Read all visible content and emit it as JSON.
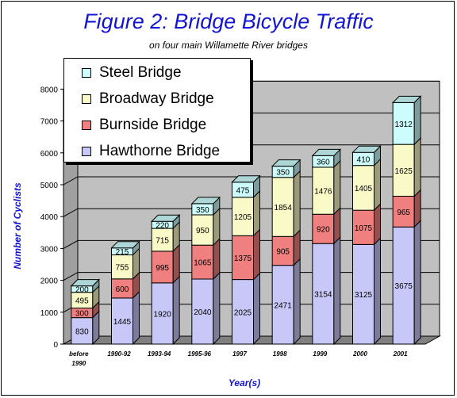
{
  "chart_data": {
    "type": "bar",
    "stacked": true,
    "title": "Figure 2: Bridge Bicycle Traffic",
    "subtitle": "on four main Willamette River bridges",
    "xlabel": "Year(s)",
    "ylabel": "Number of Cyclists",
    "ylim": [
      0,
      8000
    ],
    "yticks": [
      "0",
      "1000",
      "2000",
      "3000",
      "4000",
      "5000",
      "6000",
      "7000",
      "8000"
    ],
    "grid": true,
    "legend_position": "top-left",
    "categories": [
      "before 1990",
      "1990-92",
      "1993-94",
      "1995-96",
      "1997",
      "1998",
      "1999",
      "2000",
      "2001"
    ],
    "series": [
      {
        "name": "Hawthorne Bridge",
        "color": "#c8c8f8",
        "values": [
          830,
          1445,
          1920,
          2040,
          2025,
          2471,
          3154,
          3125,
          3675
        ]
      },
      {
        "name": "Burnside Bridge",
        "color": "#f08080",
        "values": [
          300,
          600,
          995,
          1065,
          1375,
          905,
          920,
          1075,
          965
        ]
      },
      {
        "name": "Broadway Bridge",
        "color": "#fafac8",
        "values": [
          495,
          755,
          715,
          950,
          1205,
          1854,
          1476,
          1405,
          1625
        ]
      },
      {
        "name": "Steel Bridge",
        "color": "#ccfcfc",
        "values": [
          200,
          215,
          220,
          350,
          475,
          350,
          360,
          410,
          1312
        ]
      }
    ],
    "legend_order": [
      "Steel Bridge",
      "Broadway Bridge",
      "Burnside Bridge",
      "Hawthorne Bridge"
    ]
  }
}
